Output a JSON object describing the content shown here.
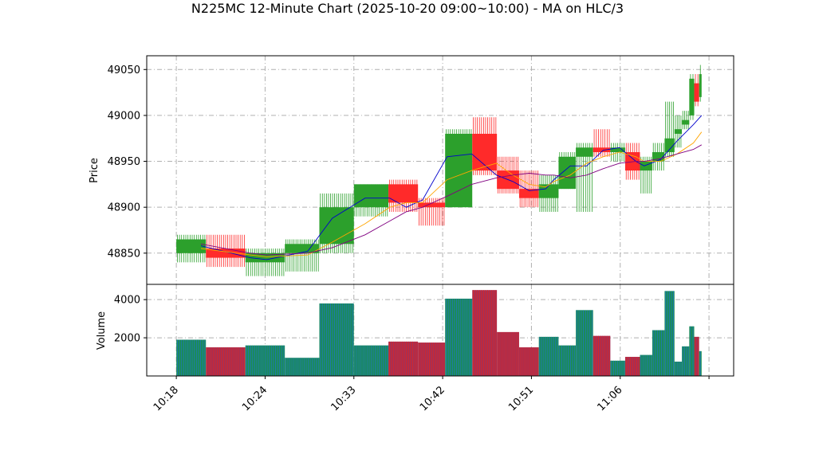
{
  "chart_data": {
    "type": "candlestick",
    "title": "N225MC 12-Minute Chart (2025-10-20 09:00~10:00) - MA on HLC/3",
    "price_panel": {
      "ylabel": "Price",
      "ylim": [
        48816,
        49065
      ],
      "yticks": [
        48850,
        48900,
        48950,
        49000,
        49050
      ],
      "grid": true
    },
    "volume_panel": {
      "ylabel": "Volume",
      "ylim": [
        0,
        4800
      ],
      "yticks": [
        2000,
        4000
      ],
      "grid": true
    },
    "xaxis": {
      "tick_labels": [
        "10:18",
        "10:24",
        "10:33",
        "10:42",
        "10:51",
        "11:06",
        ""
      ],
      "tick_index": [
        0,
        9,
        18,
        27,
        36,
        45,
        54
      ],
      "xlim": [
        -3,
        56.5
      ]
    },
    "candles": [
      {
        "start": 0,
        "width": 3,
        "open": 48850,
        "high": 48870,
        "low": 48840,
        "close": 48865,
        "volume": 1900
      },
      {
        "start": 3,
        "width": 4,
        "open": 48855,
        "high": 48870,
        "low": 48835,
        "close": 48845,
        "volume": 1500
      },
      {
        "start": 7,
        "width": 4,
        "open": 48840,
        "high": 48855,
        "low": 48825,
        "close": 48850,
        "volume": 1600
      },
      {
        "start": 11,
        "width": 3.5,
        "open": 48850,
        "high": 48865,
        "low": 48830,
        "close": 48860,
        "volume": 950
      },
      {
        "start": 14.5,
        "width": 3.5,
        "open": 48860,
        "high": 48915,
        "low": 48850,
        "close": 48900,
        "volume": 3800
      },
      {
        "start": 18,
        "width": 3.5,
        "open": 48900,
        "high": 48925,
        "low": 48890,
        "close": 48925,
        "volume": 1600
      },
      {
        "start": 21.5,
        "width": 3,
        "open": 48925,
        "high": 48930,
        "low": 48895,
        "close": 48905,
        "volume": 1800
      },
      {
        "start": 24.5,
        "width": 2.75,
        "open": 48905,
        "high": 48910,
        "low": 48880,
        "close": 48900,
        "volume": 1750
      },
      {
        "start": 27.25,
        "width": 2.75,
        "open": 48900,
        "high": 48985,
        "low": 48900,
        "close": 48980,
        "volume": 4050
      },
      {
        "start": 30,
        "width": 2.5,
        "open": 48980,
        "high": 48998,
        "low": 48935,
        "close": 48940,
        "volume": 4500
      },
      {
        "start": 32.5,
        "width": 2.25,
        "open": 48940,
        "high": 48955,
        "low": 48915,
        "close": 48920,
        "volume": 2300
      },
      {
        "start": 34.75,
        "width": 2,
        "open": 48920,
        "high": 48940,
        "low": 48900,
        "close": 48910,
        "volume": 1500
      },
      {
        "start": 36.75,
        "width": 2,
        "open": 48910,
        "high": 48935,
        "low": 48895,
        "close": 48925,
        "volume": 2050
      },
      {
        "start": 38.75,
        "width": 1.75,
        "open": 48920,
        "high": 48960,
        "low": 48920,
        "close": 48955,
        "volume": 1600
      },
      {
        "start": 40.5,
        "width": 1.75,
        "open": 48955,
        "high": 48970,
        "low": 48895,
        "close": 48965,
        "volume": 3450
      },
      {
        "start": 42.25,
        "width": 1.75,
        "open": 48965,
        "high": 48985,
        "low": 48955,
        "close": 48960,
        "volume": 2100
      },
      {
        "start": 44,
        "width": 1.5,
        "open": 48960,
        "high": 48970,
        "low": 48950,
        "close": 48965,
        "volume": 800
      },
      {
        "start": 45.5,
        "width": 1.5,
        "open": 48960,
        "high": 48970,
        "low": 48930,
        "close": 48940,
        "volume": 1000
      },
      {
        "start": 47,
        "width": 1.25,
        "open": 48940,
        "high": 48955,
        "low": 48915,
        "close": 48950,
        "volume": 1100
      },
      {
        "start": 48.25,
        "width": 1.25,
        "open": 48950,
        "high": 48970,
        "low": 48940,
        "close": 48960,
        "volume": 2400
      },
      {
        "start": 49.5,
        "width": 1,
        "open": 48960,
        "high": 49015,
        "low": 48955,
        "close": 48975,
        "volume": 4450
      },
      {
        "start": 50.5,
        "width": 0.75,
        "open": 48980,
        "high": 49000,
        "low": 48965,
        "close": 48985,
        "volume": 750
      },
      {
        "start": 51.25,
        "width": 0.75,
        "open": 48990,
        "high": 49005,
        "low": 48985,
        "close": 48995,
        "volume": 1550
      },
      {
        "start": 52,
        "width": 0.5,
        "open": 49000,
        "high": 49045,
        "low": 48995,
        "close": 49040,
        "volume": 2600
      },
      {
        "start": 52.5,
        "width": 0.5,
        "open": 49035,
        "high": 49045,
        "low": 49010,
        "close": 49015,
        "volume": 2050
      },
      {
        "start": 53,
        "width": 0.25,
        "open": 49020,
        "high": 49055,
        "low": 49015,
        "close": 49045,
        "volume": 1300
      }
    ],
    "ma_series": [
      {
        "color": "#0000cc",
        "points": [
          [
            3,
            48858
          ],
          [
            9,
            48845
          ],
          [
            11,
            48843
          ],
          [
            16,
            48852
          ],
          [
            19,
            48888
          ],
          [
            23,
            48910
          ],
          [
            26,
            48910
          ],
          [
            28,
            48900
          ],
          [
            30,
            48908
          ],
          [
            33,
            48955
          ],
          [
            36,
            48958
          ],
          [
            39,
            48935
          ],
          [
            41,
            48928
          ],
          [
            43,
            48918
          ],
          [
            45,
            48920
          ],
          [
            46,
            48930
          ],
          [
            48,
            48945
          ],
          [
            50,
            48945
          ],
          [
            52,
            48962
          ],
          [
            54,
            48965
          ],
          [
            56,
            48950
          ],
          [
            57,
            48945
          ],
          [
            59,
            48952
          ],
          [
            61,
            48972
          ],
          [
            63,
            48990
          ],
          [
            64,
            49000
          ]
        ]
      },
      {
        "color": "#ffa500",
        "points": [
          [
            3,
            48855
          ],
          [
            9,
            48848
          ],
          [
            11,
            48846
          ],
          [
            16,
            48848
          ],
          [
            19,
            48862
          ],
          [
            23,
            48882
          ],
          [
            26,
            48900
          ],
          [
            28,
            48905
          ],
          [
            30,
            48905
          ],
          [
            33,
            48930
          ],
          [
            36,
            48940
          ],
          [
            39,
            48948
          ],
          [
            41,
            48935
          ],
          [
            43,
            48925
          ],
          [
            45,
            48922
          ],
          [
            46,
            48928
          ],
          [
            48,
            48935
          ],
          [
            50,
            48948
          ],
          [
            52,
            48955
          ],
          [
            54,
            48960
          ],
          [
            56,
            48955
          ],
          [
            57,
            48950
          ],
          [
            59,
            48950
          ],
          [
            61,
            48958
          ],
          [
            63,
            48970
          ],
          [
            64,
            48982
          ]
        ]
      },
      {
        "color": "#800080",
        "points": [
          [
            3,
            48860
          ],
          [
            9,
            48850
          ],
          [
            11,
            48848
          ],
          [
            16,
            48850
          ],
          [
            19,
            48856
          ],
          [
            23,
            48870
          ],
          [
            26,
            48885
          ],
          [
            28,
            48895
          ],
          [
            30,
            48900
          ],
          [
            33,
            48912
          ],
          [
            36,
            48925
          ],
          [
            39,
            48932
          ],
          [
            41,
            48935
          ],
          [
            43,
            48937
          ],
          [
            45,
            48935
          ],
          [
            46,
            48935
          ],
          [
            48,
            48932
          ],
          [
            50,
            48935
          ],
          [
            52,
            48942
          ],
          [
            54,
            48948
          ],
          [
            56,
            48950
          ],
          [
            57,
            48950
          ],
          [
            59,
            48953
          ],
          [
            61,
            48958
          ],
          [
            63,
            48963
          ],
          [
            64,
            48968
          ]
        ]
      }
    ],
    "colors": {
      "up": "#2ca02c",
      "down": "#ff2a2a",
      "volume_up": "#1f77b4",
      "volume_down": "#d62728",
      "grid": "#b0b0b0",
      "ma_short": "#0000cc",
      "ma_mid": "#ffa500",
      "ma_long": "#800080"
    }
  }
}
